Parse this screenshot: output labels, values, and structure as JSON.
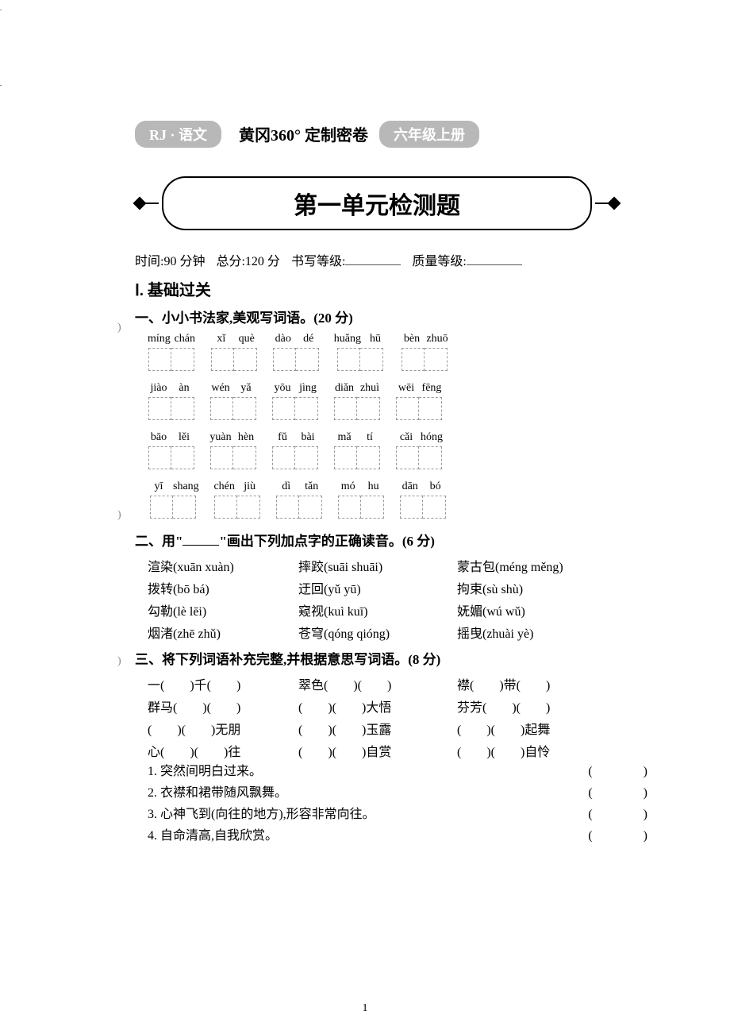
{
  "header": {
    "subject_pill": "RJ · 语文",
    "center_text": "黄冈360° 定制密卷",
    "grade_pill": "六年级上册"
  },
  "title": "第一单元检测题",
  "meta": {
    "time_label": "时间:",
    "time_value": "90 分钟",
    "total_label": "总分:",
    "total_value": "120 分",
    "writing_label": "书写等级:",
    "quality_label": "质量等级:"
  },
  "part1_label": "Ⅰ. 基础过关",
  "q1": {
    "heading": "一、小小书法家,美观写词语。(20 分)",
    "rows": [
      [
        [
          "míng",
          "chán"
        ],
        [
          "xǐ",
          "què"
        ],
        [
          "dào",
          "dé"
        ],
        [
          "huǎng",
          "hū"
        ],
        [
          "bèn",
          "zhuō"
        ]
      ],
      [
        [
          "jiào",
          "àn"
        ],
        [
          "wén",
          "yǎ"
        ],
        [
          "yōu",
          "jìng"
        ],
        [
          "diǎn",
          "zhuì"
        ],
        [
          "wēi",
          "fēng"
        ]
      ],
      [
        [
          "bāo",
          "lěi"
        ],
        [
          "yuàn",
          "hèn"
        ],
        [
          "fǔ",
          "bài"
        ],
        [
          "mǎ",
          "tí"
        ],
        [
          "cǎi",
          "hóng"
        ]
      ],
      [
        [
          "yī",
          "shang"
        ],
        [
          "chén",
          "jiù"
        ],
        [
          "dì",
          "tǎn"
        ],
        [
          "mó",
          "hu"
        ],
        [
          "dān",
          "bó"
        ]
      ]
    ]
  },
  "q2": {
    "heading_pre": "二、用\"",
    "heading_post": "\"画出下列加点字的正确读音。(6 分)",
    "items": [
      {
        "word": "渲染",
        "choices": "(xuān xuàn)"
      },
      {
        "word": "摔跤",
        "choices": "(suāi shuāi)"
      },
      {
        "word": "蒙古包",
        "choices": "(méng měng)"
      },
      {
        "word": "拨转",
        "choices": "(bō bá)"
      },
      {
        "word": "迂回",
        "choices": "(yǔ yū)"
      },
      {
        "word": "拘束",
        "choices": "(sù shù)"
      },
      {
        "word": "勾勒",
        "choices": "(lè lēi)"
      },
      {
        "word": "窥视",
        "choices": "(kuì kuī)"
      },
      {
        "word": "妩媚",
        "choices": "(wú wǔ)"
      },
      {
        "word": "烟渚",
        "choices": "(zhē zhǔ)"
      },
      {
        "word": "苍穹",
        "choices": "(qóng qióng)"
      },
      {
        "word": "摇曳",
        "choices": "(zhuài yè)"
      }
    ]
  },
  "q3": {
    "heading": "三、将下列词语补充完整,并根据意思写词语。(8 分)",
    "fills": [
      "一(　　)千(　　)",
      "翠色(　　)(　　)",
      "襟(　　)带(　　)",
      "群马(　　)(　　)",
      "(　　)(　　)大悟",
      "芬芳(　　)(　　)",
      "(　　)(　　)无朋",
      "(　　)(　　)玉露",
      "(　　)(　　)起舞",
      "心(　　)(　　)往",
      "(　　)(　　)自赏",
      "(　　)(　　)自怜"
    ],
    "meanings": [
      "1. 突然间明白过来。",
      "2. 衣襟和裙带随风飘舞。",
      "3. 心神飞到(向往的地方),形容非常向往。",
      "4. 自命清高,自我欣赏。"
    ],
    "paren": "(　　　　)"
  },
  "page_number": "1",
  "colors": {
    "text": "#000000",
    "pill_bg": "#b8b8b8",
    "dashed": "#999999"
  }
}
